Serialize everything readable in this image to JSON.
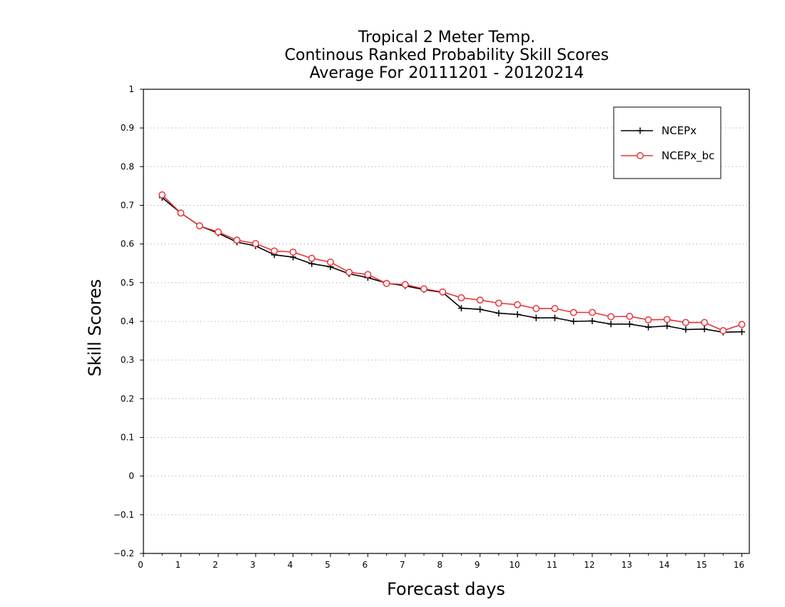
{
  "chart_data": {
    "type": "line",
    "title": [
      "Tropical 2 Meter Temp.",
      "Continous Ranked Probability Skill Scores",
      "Average For 20111201 - 20120214"
    ],
    "xlabel": "Forecast days",
    "ylabel": "Skill Scores",
    "xlim": [
      0,
      16.2
    ],
    "ylim": [
      -0.2,
      1
    ],
    "xticks": [
      0,
      1,
      2,
      3,
      4,
      5,
      6,
      7,
      8,
      9,
      10,
      11,
      12,
      13,
      14,
      15,
      16
    ],
    "xtick_labels": [
      "0",
      "1",
      "2",
      "3",
      "4",
      "5",
      "6",
      "7",
      "8",
      "9",
      "10",
      "11",
      "12",
      "13",
      "14",
      "15",
      "16"
    ],
    "yticks": [
      -0.2,
      -0.1,
      0,
      0.1,
      0.2,
      0.3,
      0.4,
      0.5,
      0.6,
      0.7,
      0.8,
      0.9,
      1
    ],
    "ytick_labels": [
      "−0.2",
      "−0.1",
      "0",
      "0.1",
      "0.2",
      "0.3",
      "0.4",
      "0.5",
      "0.6",
      "0.7",
      "0.8",
      "0.9",
      "1"
    ],
    "grid": "horizontal dotted",
    "legend_position": "top-right",
    "x": [
      0.5,
      1,
      1.5,
      2,
      2.5,
      3,
      3.5,
      4,
      4.5,
      5,
      5.5,
      6,
      6.5,
      7,
      7.5,
      8,
      8.5,
      9,
      9.5,
      10,
      10.5,
      11,
      11.5,
      12,
      12.5,
      13,
      13.5,
      14,
      14.5,
      15,
      15.5,
      16
    ],
    "series": [
      {
        "name": "NCEPx",
        "color": "#000000",
        "marker": "plus",
        "values": [
          0.72,
          0.68,
          0.647,
          0.628,
          0.605,
          0.595,
          0.572,
          0.566,
          0.549,
          0.541,
          0.523,
          0.513,
          0.499,
          0.492,
          0.482,
          0.475,
          0.434,
          0.431,
          0.421,
          0.418,
          0.409,
          0.409,
          0.4,
          0.401,
          0.393,
          0.393,
          0.385,
          0.388,
          0.379,
          0.38,
          0.372,
          0.373
        ]
      },
      {
        "name": "NCEPx_bc",
        "color": "#e8343a",
        "marker": "circle",
        "values": [
          0.727,
          0.68,
          0.647,
          0.631,
          0.61,
          0.601,
          0.582,
          0.579,
          0.563,
          0.553,
          0.527,
          0.521,
          0.498,
          0.495,
          0.484,
          0.476,
          0.461,
          0.455,
          0.447,
          0.443,
          0.433,
          0.433,
          0.423,
          0.423,
          0.412,
          0.413,
          0.404,
          0.405,
          0.397,
          0.397,
          0.376,
          0.392
        ]
      }
    ]
  }
}
